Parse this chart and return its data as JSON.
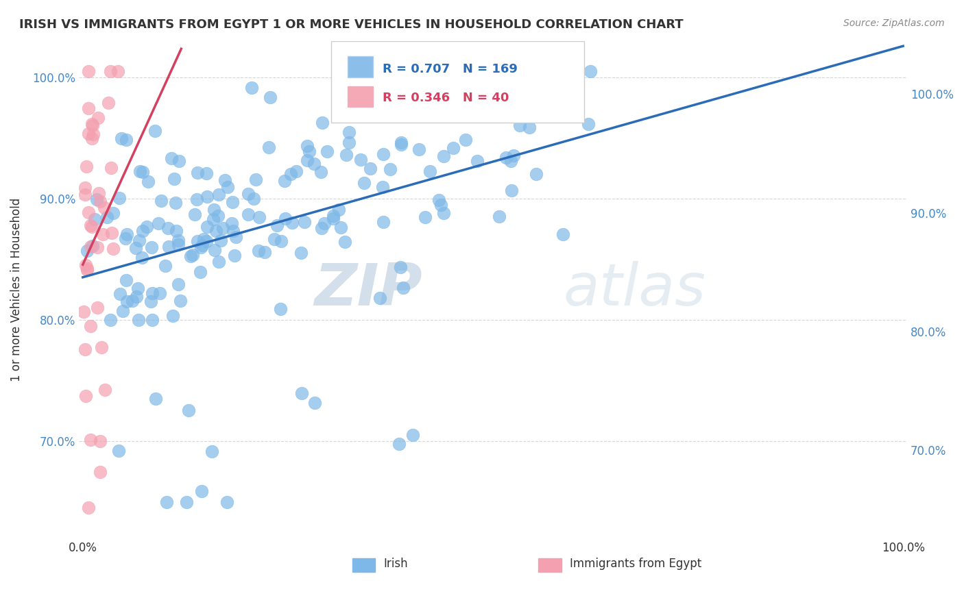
{
  "title": "IRISH VS IMMIGRANTS FROM EGYPT 1 OR MORE VEHICLES IN HOUSEHOLD CORRELATION CHART",
  "source": "Source: ZipAtlas.com",
  "ylabel": "1 or more Vehicles in Household",
  "yaxis_values": [
    0.7,
    0.8,
    0.9,
    1.0
  ],
  "ylim": [
    0.62,
    1.03
  ],
  "xlim": [
    -0.005,
    1.005
  ],
  "irish_color": "#7EB8E8",
  "egypt_color": "#F4A0B0",
  "irish_line_color": "#2B6CB8",
  "egypt_line_color": "#D44060",
  "r_irish": 0.707,
  "n_irish": 169,
  "r_egypt": 0.346,
  "n_egypt": 40,
  "background_color": "#FFFFFF",
  "watermark_zip": "ZIP",
  "watermark_atlas": "atlas"
}
